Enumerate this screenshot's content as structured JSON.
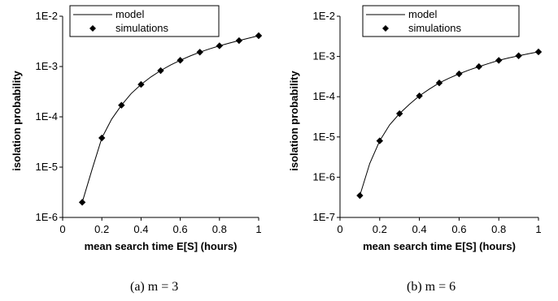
{
  "chart_data": [
    {
      "type": "line",
      "caption": "(a)  m = 3",
      "xlabel": "mean search time E[S] (hours)",
      "ylabel": "isolation probability",
      "xlim": [
        0,
        1
      ],
      "ylim": [
        1e-06,
        0.01
      ],
      "yscale": "log",
      "xticks": [
        "0",
        "0.2",
        "0.4",
        "0.6",
        "0.8",
        "1"
      ],
      "yticks": [
        "1E-6",
        "1E-5",
        "1E-4",
        "1E-3",
        "1E-2"
      ],
      "legend_position": "top-left",
      "series": [
        {
          "name": "model",
          "style": "line",
          "x": [
            0.1,
            0.15,
            0.2,
            0.25,
            0.3,
            0.35,
            0.4,
            0.45,
            0.5,
            0.55,
            0.6,
            0.65,
            0.7,
            0.75,
            0.8,
            0.85,
            0.9,
            0.95,
            1.0
          ],
          "y": [
            2e-06,
            9e-06,
            3.8e-05,
            9e-05,
            0.00017,
            0.00029,
            0.00044,
            0.00062,
            0.00083,
            0.00107,
            0.00133,
            0.00162,
            0.00193,
            0.00225,
            0.00258,
            0.00292,
            0.00328,
            0.00367,
            0.0041
          ]
        },
        {
          "name": "simulations",
          "style": "markers",
          "x": [
            0.1,
            0.2,
            0.3,
            0.4,
            0.5,
            0.6,
            0.7,
            0.8,
            0.9,
            1.0
          ],
          "y": [
            2e-06,
            3.8e-05,
            0.00017,
            0.00044,
            0.00083,
            0.00133,
            0.00193,
            0.00258,
            0.00328,
            0.0041
          ]
        }
      ]
    },
    {
      "type": "line",
      "caption": "(b)  m = 6",
      "xlabel": "mean search time E[S] (hours)",
      "ylabel": "isolation probability",
      "xlim": [
        0,
        1
      ],
      "ylim": [
        1e-07,
        0.01
      ],
      "yscale": "log",
      "xticks": [
        "0",
        "0.2",
        "0.4",
        "0.6",
        "0.8",
        "1"
      ],
      "yticks": [
        "1E-7",
        "1E-6",
        "1E-5",
        "1E-4",
        "1E-3",
        "1E-2"
      ],
      "legend_position": "top-right",
      "series": [
        {
          "name": "model",
          "style": "line",
          "x": [
            0.1,
            0.15,
            0.2,
            0.25,
            0.3,
            0.35,
            0.4,
            0.45,
            0.5,
            0.55,
            0.6,
            0.65,
            0.7,
            0.75,
            0.8,
            0.85,
            0.9,
            0.95,
            1.0
          ],
          "y": [
            3.5e-07,
            2.2e-06,
            8e-06,
            2e-05,
            3.8e-05,
            6.5e-05,
            0.000105,
            0.000155,
            0.00022,
            0.00029,
            0.00037,
            0.00046,
            0.00056,
            0.00067,
            0.0008,
            0.00092,
            0.00104,
            0.00117,
            0.0013
          ]
        },
        {
          "name": "simulations",
          "style": "markers",
          "x": [
            0.1,
            0.2,
            0.3,
            0.4,
            0.5,
            0.6,
            0.7,
            0.8,
            0.9,
            1.0
          ],
          "y": [
            3.5e-07,
            8e-06,
            3.8e-05,
            0.000105,
            0.00022,
            0.00037,
            0.00056,
            0.0008,
            0.00104,
            0.0013
          ]
        }
      ]
    }
  ]
}
